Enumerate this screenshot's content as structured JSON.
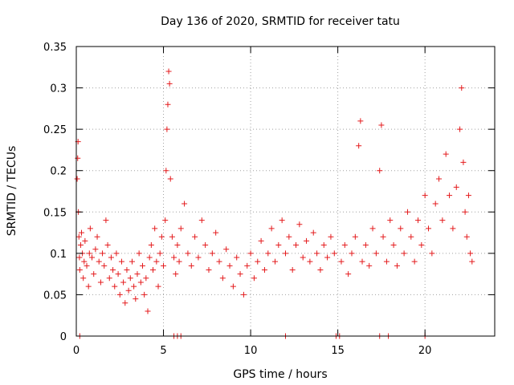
{
  "chart_data": {
    "type": "scatter",
    "title": "Day 136 of 2020, SRMTID for receiver tatu",
    "xlabel": "GPS time / hours",
    "ylabel": "SRMTID / TECUs",
    "xlim": [
      0,
      24
    ],
    "ylim": [
      0,
      0.35
    ],
    "x_ticks": [
      0,
      5,
      10,
      15,
      20
    ],
    "x_tick_labels": [
      "0",
      "5",
      "10",
      "15",
      "20"
    ],
    "y_ticks": [
      0,
      0.05,
      0.1,
      0.15,
      0.2,
      0.25,
      0.3,
      0.35
    ],
    "y_tick_labels": [
      "0",
      "0.05",
      "0.1",
      "0.15",
      "0.2",
      "0.25",
      "0.3",
      "0.35"
    ],
    "grid": true,
    "marker": "+",
    "series": [
      {
        "name": "SRMTID",
        "color": "#e41a1c",
        "points": [
          [
            0.05,
            0.19
          ],
          [
            0.08,
            0.215
          ],
          [
            0.1,
            0.235
          ],
          [
            0.12,
            0.15
          ],
          [
            0.15,
            0.12
          ],
          [
            0.18,
            0.095
          ],
          [
            0.2,
            0.08
          ],
          [
            0.25,
            0.11
          ],
          [
            0.3,
            0.125
          ],
          [
            0.35,
            0.1
          ],
          [
            0.4,
            0.07
          ],
          [
            0.45,
            0.09
          ],
          [
            0.5,
            0.115
          ],
          [
            0.6,
            0.085
          ],
          [
            0.7,
            0.06
          ],
          [
            0.75,
            0.1
          ],
          [
            0.8,
            0.13
          ],
          [
            0.9,
            0.095
          ],
          [
            1.0,
            0.075
          ],
          [
            1.1,
            0.105
          ],
          [
            1.2,
            0.12
          ],
          [
            1.3,
            0.09
          ],
          [
            1.4,
            0.065
          ],
          [
            1.5,
            0.1
          ],
          [
            1.6,
            0.085
          ],
          [
            1.7,
            0.14
          ],
          [
            1.8,
            0.11
          ],
          [
            1.9,
            0.07
          ],
          [
            2.0,
            0.095
          ],
          [
            2.1,
            0.08
          ],
          [
            2.2,
            0.06
          ],
          [
            2.3,
            0.1
          ],
          [
            2.4,
            0.075
          ],
          [
            2.5,
            0.05
          ],
          [
            2.6,
            0.09
          ],
          [
            2.7,
            0.065
          ],
          [
            2.8,
            0.04
          ],
          [
            2.9,
            0.08
          ],
          [
            3.0,
            0.055
          ],
          [
            3.1,
            0.07
          ],
          [
            3.2,
            0.09
          ],
          [
            3.3,
            0.06
          ],
          [
            3.4,
            0.045
          ],
          [
            3.5,
            0.075
          ],
          [
            3.6,
            0.1
          ],
          [
            3.7,
            0.065
          ],
          [
            3.8,
            0.085
          ],
          [
            3.9,
            0.05
          ],
          [
            4.0,
            0.07
          ],
          [
            4.1,
            0.03
          ],
          [
            4.2,
            0.095
          ],
          [
            4.3,
            0.11
          ],
          [
            4.4,
            0.08
          ],
          [
            4.5,
            0.13
          ],
          [
            4.6,
            0.09
          ],
          [
            4.7,
            0.06
          ],
          [
            4.8,
            0.1
          ],
          [
            4.9,
            0.12
          ],
          [
            5.0,
            0.085
          ],
          [
            5.1,
            0.14
          ],
          [
            5.15,
            0.2
          ],
          [
            5.2,
            0.25
          ],
          [
            5.25,
            0.28
          ],
          [
            5.3,
            0.32
          ],
          [
            5.35,
            0.305
          ],
          [
            5.4,
            0.19
          ],
          [
            5.5,
            0.12
          ],
          [
            5.6,
            0.095
          ],
          [
            5.7,
            0.075
          ],
          [
            5.8,
            0.11
          ],
          [
            5.9,
            0.09
          ],
          [
            6.0,
            0.13
          ],
          [
            6.2,
            0.16
          ],
          [
            6.4,
            0.1
          ],
          [
            6.6,
            0.085
          ],
          [
            6.8,
            0.12
          ],
          [
            7.0,
            0.095
          ],
          [
            7.2,
            0.14
          ],
          [
            7.4,
            0.11
          ],
          [
            7.6,
            0.08
          ],
          [
            7.8,
            0.1
          ],
          [
            8.0,
            0.125
          ],
          [
            8.2,
            0.09
          ],
          [
            8.4,
            0.07
          ],
          [
            8.6,
            0.105
          ],
          [
            8.8,
            0.085
          ],
          [
            9.0,
            0.06
          ],
          [
            9.2,
            0.095
          ],
          [
            9.4,
            0.075
          ],
          [
            9.6,
            0.05
          ],
          [
            9.8,
            0.085
          ],
          [
            10.0,
            0.1
          ],
          [
            10.2,
            0.07
          ],
          [
            10.4,
            0.09
          ],
          [
            10.6,
            0.115
          ],
          [
            10.8,
            0.08
          ],
          [
            11.0,
            0.1
          ],
          [
            11.2,
            0.13
          ],
          [
            11.4,
            0.09
          ],
          [
            11.6,
            0.11
          ],
          [
            11.8,
            0.14
          ],
          [
            12.0,
            0.1
          ],
          [
            12.2,
            0.12
          ],
          [
            12.4,
            0.08
          ],
          [
            12.6,
            0.11
          ],
          [
            12.8,
            0.135
          ],
          [
            13.0,
            0.095
          ],
          [
            13.2,
            0.115
          ],
          [
            13.4,
            0.09
          ],
          [
            13.6,
            0.125
          ],
          [
            13.8,
            0.1
          ],
          [
            14.0,
            0.08
          ],
          [
            14.2,
            0.11
          ],
          [
            14.4,
            0.095
          ],
          [
            14.6,
            0.12
          ],
          [
            14.8,
            0.1
          ],
          [
            15.2,
            0.09
          ],
          [
            15.4,
            0.11
          ],
          [
            15.6,
            0.075
          ],
          [
            15.8,
            0.1
          ],
          [
            16.0,
            0.12
          ],
          [
            16.2,
            0.23
          ],
          [
            16.3,
            0.26
          ],
          [
            16.4,
            0.09
          ],
          [
            16.6,
            0.11
          ],
          [
            16.8,
            0.085
          ],
          [
            17.0,
            0.13
          ],
          [
            17.2,
            0.1
          ],
          [
            17.4,
            0.2
          ],
          [
            17.5,
            0.255
          ],
          [
            17.6,
            0.12
          ],
          [
            17.8,
            0.09
          ],
          [
            18.0,
            0.14
          ],
          [
            18.2,
            0.11
          ],
          [
            18.4,
            0.085
          ],
          [
            18.6,
            0.13
          ],
          [
            18.8,
            0.1
          ],
          [
            19.0,
            0.15
          ],
          [
            19.2,
            0.12
          ],
          [
            19.4,
            0.09
          ],
          [
            19.6,
            0.14
          ],
          [
            19.8,
            0.11
          ],
          [
            20.0,
            0.17
          ],
          [
            20.2,
            0.13
          ],
          [
            20.4,
            0.1
          ],
          [
            20.6,
            0.16
          ],
          [
            20.8,
            0.19
          ],
          [
            21.0,
            0.14
          ],
          [
            21.2,
            0.22
          ],
          [
            21.4,
            0.17
          ],
          [
            21.6,
            0.13
          ],
          [
            21.8,
            0.18
          ],
          [
            22.0,
            0.25
          ],
          [
            22.1,
            0.3
          ],
          [
            22.2,
            0.21
          ],
          [
            22.3,
            0.15
          ],
          [
            22.4,
            0.12
          ],
          [
            22.5,
            0.17
          ],
          [
            22.6,
            0.1
          ],
          [
            22.7,
            0.09
          ],
          [
            5.6,
            0.0
          ],
          [
            5.8,
            0.0
          ],
          [
            6.0,
            0.0
          ],
          [
            12.0,
            0.0
          ],
          [
            14.9,
            0.0
          ],
          [
            15.1,
            0.0
          ],
          [
            17.4,
            0.0
          ],
          [
            17.9,
            0.0
          ],
          [
            20.0,
            0.0
          ],
          [
            0.2,
            0.0
          ]
        ]
      }
    ]
  }
}
